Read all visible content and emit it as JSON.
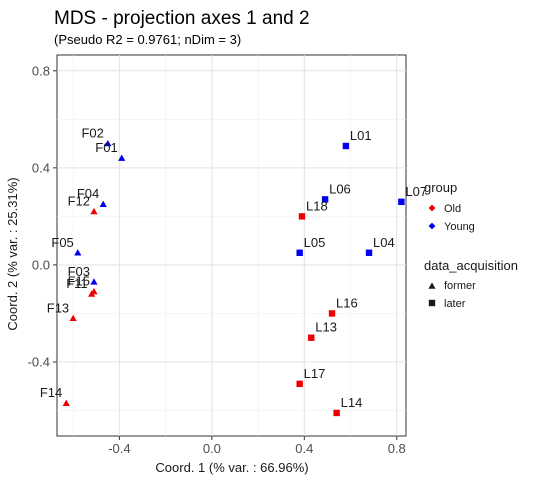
{
  "chart_data": {
    "type": "scatter",
    "title": "MDS - projection axes 1 and 2",
    "subtitle": "(Pseudo R2 = 0.9761; nDim = 3)",
    "xlabel": "Coord. 1 (% var. : 66.96%)",
    "ylabel": "Coord. 2 (% var. : 25.31%)",
    "xlim": [
      -0.67,
      0.84
    ],
    "ylim": [
      -0.705,
      0.865
    ],
    "xticks": [
      -0.4,
      0.0,
      0.4,
      0.8
    ],
    "yticks": [
      -0.4,
      0.0,
      0.4,
      0.8
    ],
    "xtick_labels": [
      "-0.4",
      "0.0",
      "0.4",
      "0.8"
    ],
    "ytick_labels": [
      "-0.4",
      "0.0",
      "0.4",
      "0.8"
    ],
    "grid": true,
    "legend_position": "right",
    "legend": {
      "group": {
        "title": "group",
        "items": [
          {
            "label": "Old",
            "color": "#ee0000"
          },
          {
            "label": "Young",
            "color": "#0000ee"
          }
        ]
      },
      "data_acquisition": {
        "title": "data_acquisition",
        "items": [
          {
            "label": "former",
            "shape": "triangle"
          },
          {
            "label": "later",
            "shape": "square"
          }
        ]
      }
    },
    "colors": {
      "Old": "#ee0000",
      "Young": "#0000ee"
    },
    "points": [
      {
        "label": "F02",
        "x": -0.45,
        "y": 0.5,
        "group": "Young",
        "acq": "former"
      },
      {
        "label": "F01",
        "x": -0.39,
        "y": 0.44,
        "group": "Young",
        "acq": "former"
      },
      {
        "label": "F04",
        "x": -0.47,
        "y": 0.25,
        "group": "Young",
        "acq": "former"
      },
      {
        "label": "F12",
        "x": -0.51,
        "y": 0.22,
        "group": "Old",
        "acq": "former"
      },
      {
        "label": "F05",
        "x": -0.58,
        "y": 0.05,
        "group": "Young",
        "acq": "former"
      },
      {
        "label": "F03",
        "x": -0.51,
        "y": -0.07,
        "group": "Young",
        "acq": "former"
      },
      {
        "label": "F11",
        "x": -0.52,
        "y": -0.12,
        "group": "Old",
        "acq": "former"
      },
      {
        "label": "F15",
        "x": -0.51,
        "y": -0.11,
        "group": "Old",
        "acq": "former"
      },
      {
        "label": "F13",
        "x": -0.6,
        "y": -0.22,
        "group": "Old",
        "acq": "former"
      },
      {
        "label": "F14",
        "x": -0.63,
        "y": -0.57,
        "group": "Old",
        "acq": "former"
      },
      {
        "label": "L01",
        "x": 0.58,
        "y": 0.49,
        "group": "Young",
        "acq": "later"
      },
      {
        "label": "L06",
        "x": 0.49,
        "y": 0.27,
        "group": "Young",
        "acq": "later"
      },
      {
        "label": "L07",
        "x": 0.82,
        "y": 0.26,
        "group": "Young",
        "acq": "later"
      },
      {
        "label": "L18",
        "x": 0.39,
        "y": 0.2,
        "group": "Old",
        "acq": "later"
      },
      {
        "label": "L05",
        "x": 0.38,
        "y": 0.05,
        "group": "Young",
        "acq": "later"
      },
      {
        "label": "L04",
        "x": 0.68,
        "y": 0.05,
        "group": "Young",
        "acq": "later"
      },
      {
        "label": "L16",
        "x": 0.52,
        "y": -0.2,
        "group": "Old",
        "acq": "later"
      },
      {
        "label": "L13",
        "x": 0.43,
        "y": -0.3,
        "group": "Old",
        "acq": "later"
      },
      {
        "label": "L17",
        "x": 0.38,
        "y": -0.49,
        "group": "Old",
        "acq": "later"
      },
      {
        "label": "L14",
        "x": 0.54,
        "y": -0.61,
        "group": "Old",
        "acq": "later"
      }
    ]
  }
}
